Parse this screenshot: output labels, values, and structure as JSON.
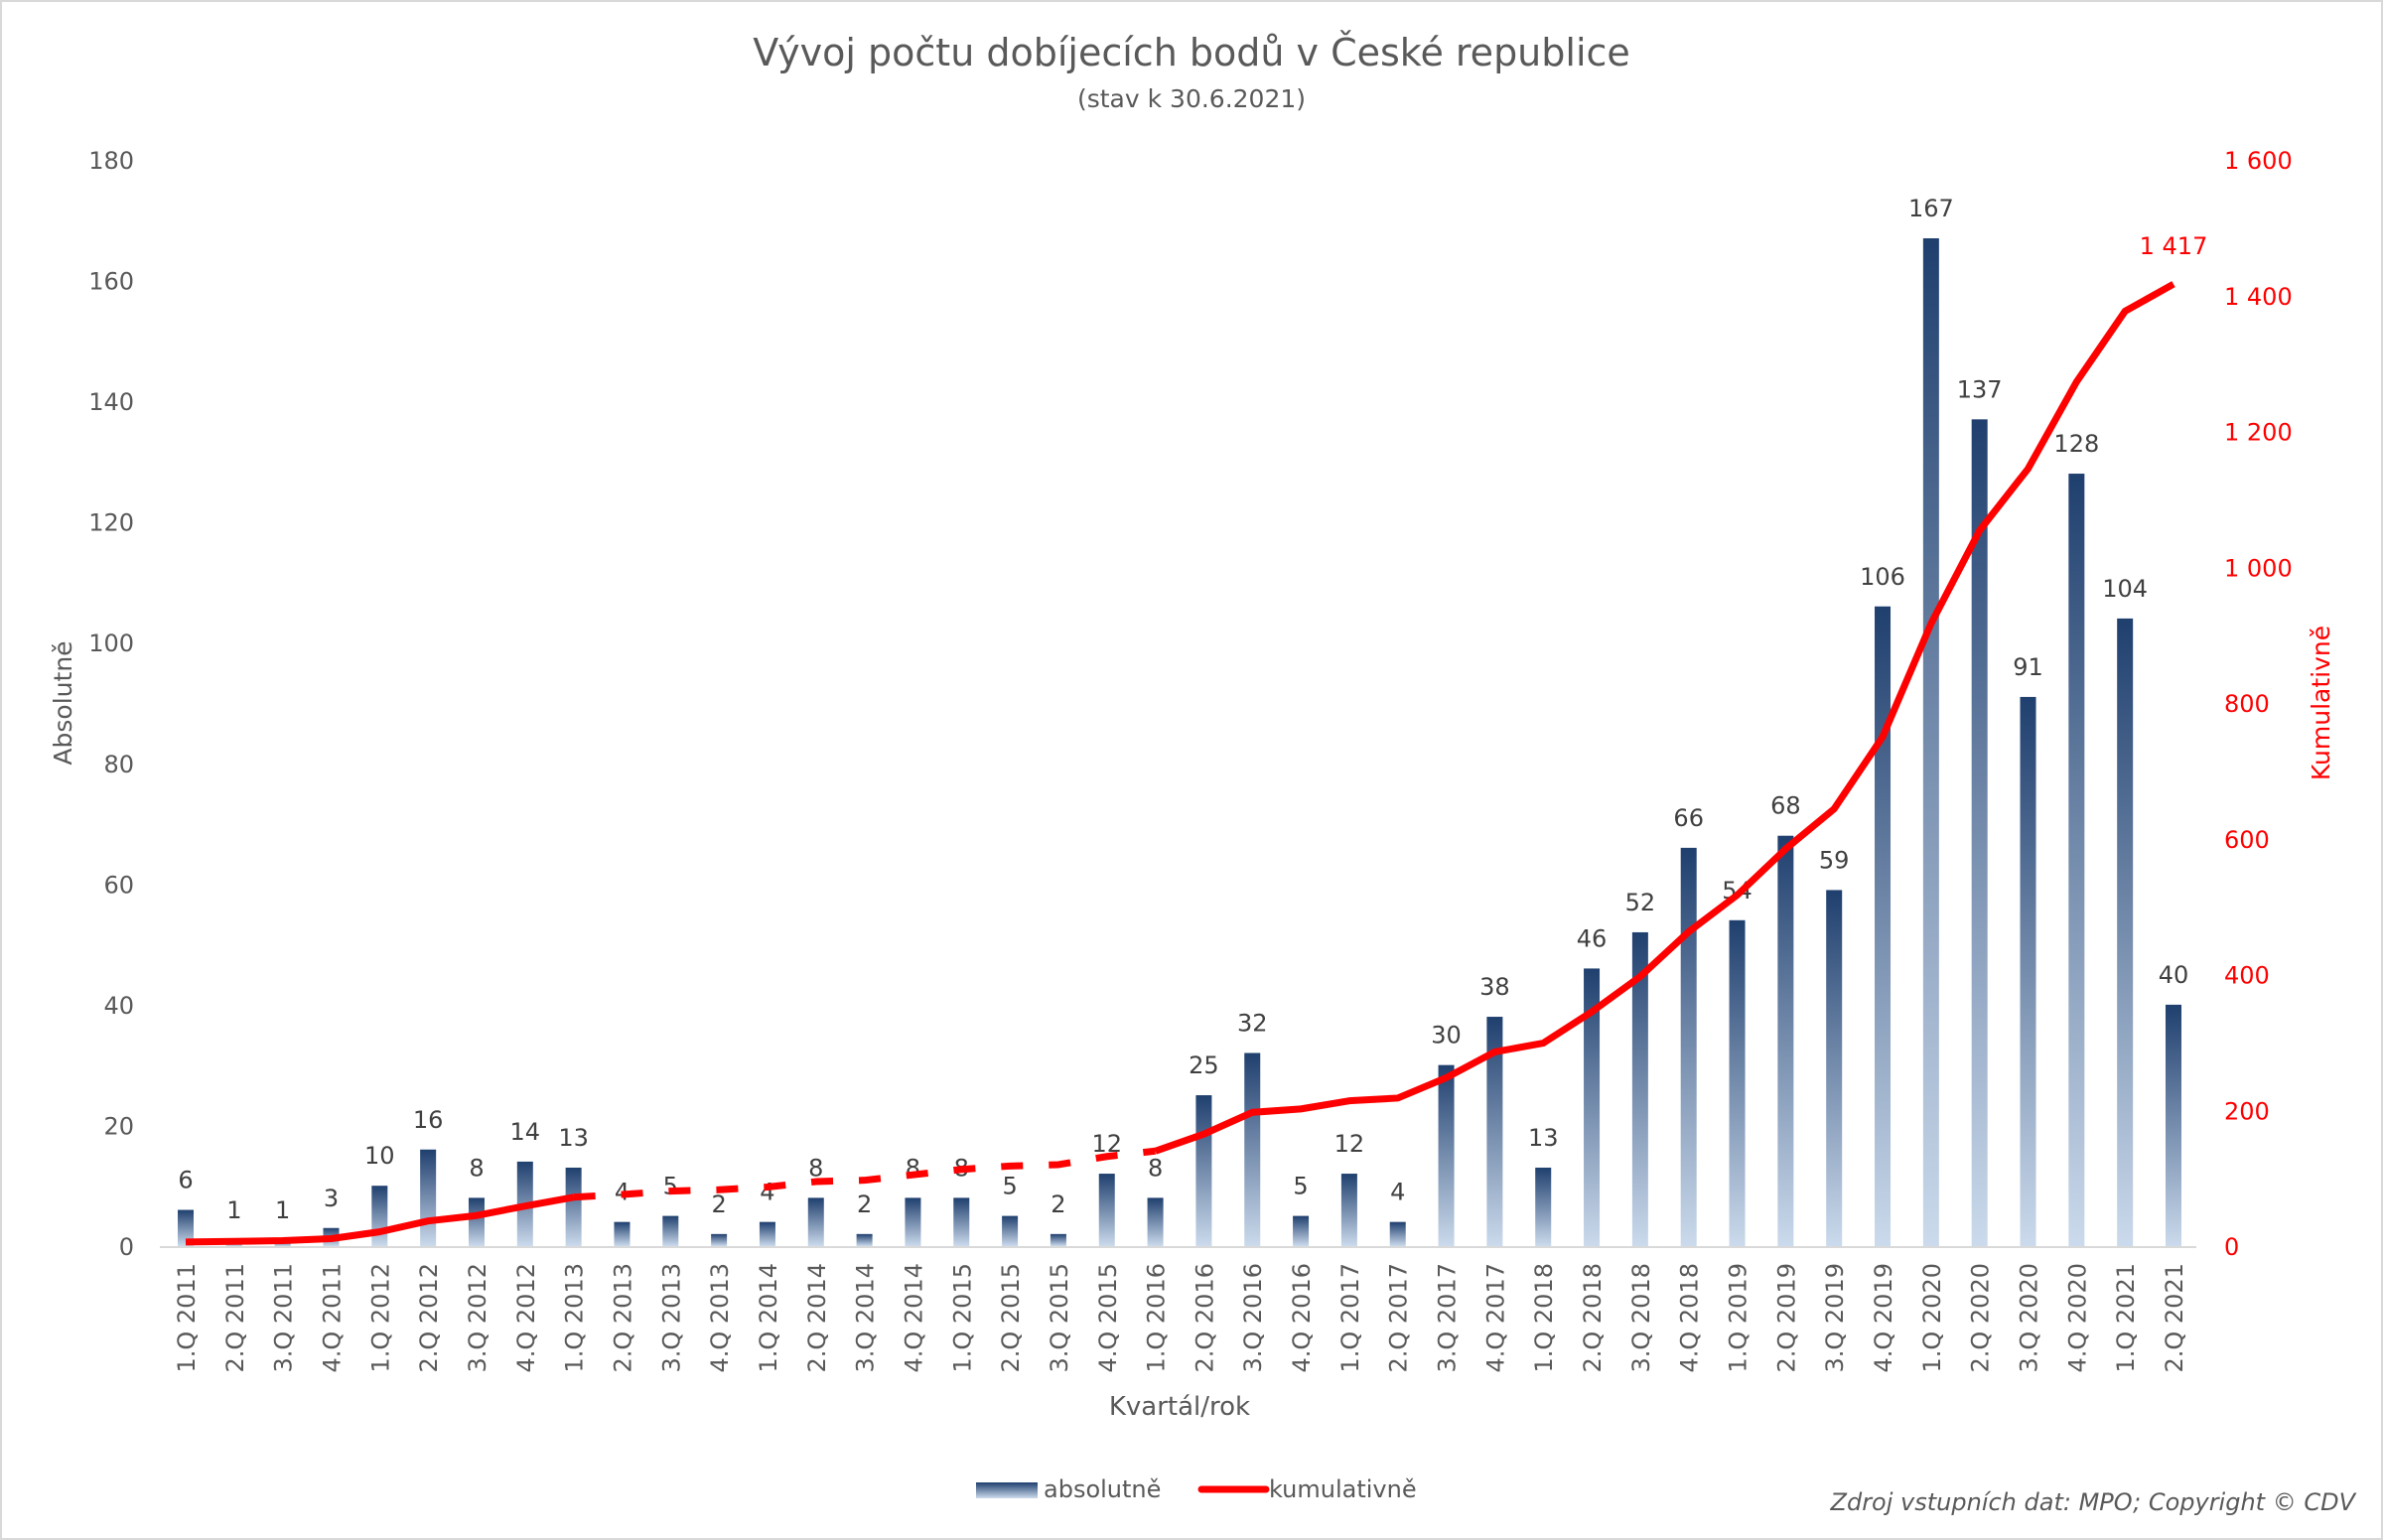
{
  "chart_data": {
    "type": "bar+line",
    "title": "Vývoj počtu dobíjecích bodů v České republice",
    "subtitle": "(stav k 30.6.2021)",
    "xlabel": "Kvartál/rok",
    "ylabel": "Absolutně",
    "y2label": "Kumulativně",
    "ylim": [
      0,
      180
    ],
    "y2lim": [
      0,
      1600
    ],
    "yticks": [
      "0",
      "20",
      "40",
      "60",
      "80",
      "100",
      "120",
      "140",
      "160",
      "180"
    ],
    "y2ticks": [
      "0",
      "200",
      "400",
      "600",
      "800",
      "1 000",
      "1 200",
      "1 400",
      "1 600"
    ],
    "grid": false,
    "legend_position": "bottom",
    "categories": [
      "1.Q 2011",
      "2.Q 2011",
      "3.Q 2011",
      "4.Q 2011",
      "1.Q 2012",
      "2.Q 2012",
      "3.Q 2012",
      "4.Q 2012",
      "1.Q 2013",
      "2.Q 2013",
      "3.Q 2013",
      "4.Q 2013",
      "1.Q 2014",
      "2.Q 2014",
      "3.Q 2014",
      "4.Q 2014",
      "1.Q 2015",
      "2.Q 2015",
      "3.Q 2015",
      "4.Q 2015",
      "1.Q 2016",
      "2.Q 2016",
      "3.Q 2016",
      "4.Q 2016",
      "1.Q 2017",
      "2.Q 2017",
      "3.Q 2017",
      "4.Q 2017",
      "1.Q 2018",
      "2.Q 2018",
      "3.Q 2018",
      "4.Q 2018",
      "1.Q 2019",
      "2.Q 2019",
      "3.Q 2019",
      "4.Q 2019",
      "1.Q 2020",
      "2.Q 2020",
      "3.Q 2020",
      "4.Q 2020",
      "1.Q 2021",
      "2.Q 2021"
    ],
    "series": [
      {
        "name": "absolutně",
        "type": "bar",
        "axis": "left",
        "color": "#1f3f6e",
        "values": [
          6,
          1,
          1,
          3,
          10,
          16,
          8,
          14,
          13,
          4,
          5,
          2,
          4,
          8,
          2,
          8,
          8,
          5,
          2,
          12,
          8,
          25,
          32,
          5,
          12,
          4,
          30,
          38,
          13,
          46,
          52,
          66,
          54,
          68,
          59,
          106,
          167,
          137,
          91,
          128,
          104,
          40
        ]
      },
      {
        "name": "kumulativně",
        "type": "line",
        "axis": "right",
        "color": "#ff0000",
        "values": [
          6,
          7,
          8,
          11,
          21,
          37,
          45,
          59,
          72,
          76,
          81,
          83,
          87,
          95,
          97,
          105,
          113,
          118,
          120,
          132,
          140,
          165,
          197,
          202,
          214,
          218,
          248,
          286,
          299,
          345,
          397,
          463,
          517,
          585,
          644,
          750,
          917,
          1054,
          1145,
          1273,
          1377,
          1417
        ],
        "last_label": "1 417"
      }
    ],
    "source": "Zdroj vstupních dat: MPO; Copyright © CDV"
  }
}
